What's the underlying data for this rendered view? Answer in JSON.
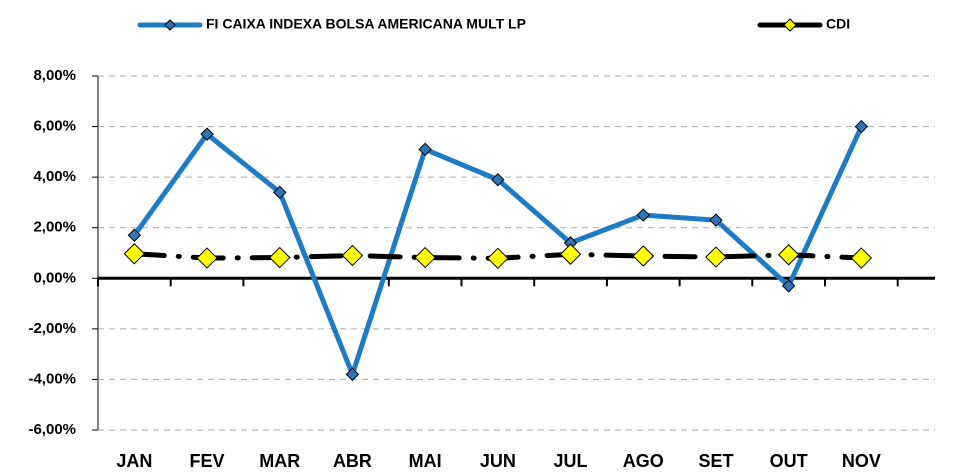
{
  "chart_data": {
    "type": "line",
    "categories": [
      "JAN",
      "FEV",
      "MAR",
      "ABR",
      "MAI",
      "JUN",
      "JUL",
      "AGO",
      "SET",
      "OUT",
      "NOV"
    ],
    "series": [
      {
        "name": "FI CAIXA INDEXA BOLSA AMERICANA MULT LP",
        "color": "#1f7bc4",
        "marker_color": "#2e75b6",
        "values": [
          1.7,
          5.7,
          3.4,
          -3.8,
          5.1,
          3.9,
          1.4,
          2.5,
          2.3,
          -0.3,
          6.0
        ]
      },
      {
        "name": "CDI",
        "color": "#000000",
        "marker_color": "#ffff00",
        "values": [
          0.97,
          0.8,
          0.82,
          0.9,
          0.82,
          0.79,
          0.95,
          0.88,
          0.84,
          0.93,
          0.8
        ]
      }
    ],
    "ylim": [
      -6,
      8
    ],
    "yticks": [
      {
        "value": -6,
        "label": "-6,00%"
      },
      {
        "value": -4,
        "label": "-4,00%"
      },
      {
        "value": -2,
        "label": "-2,00%"
      },
      {
        "value": 0,
        "label": "0,00%"
      },
      {
        "value": 2,
        "label": "2,00%"
      },
      {
        "value": 4,
        "label": "4,00%"
      },
      {
        "value": 6,
        "label": "6,00%"
      },
      {
        "value": 8,
        "label": "8,00%"
      }
    ],
    "grid": true
  }
}
